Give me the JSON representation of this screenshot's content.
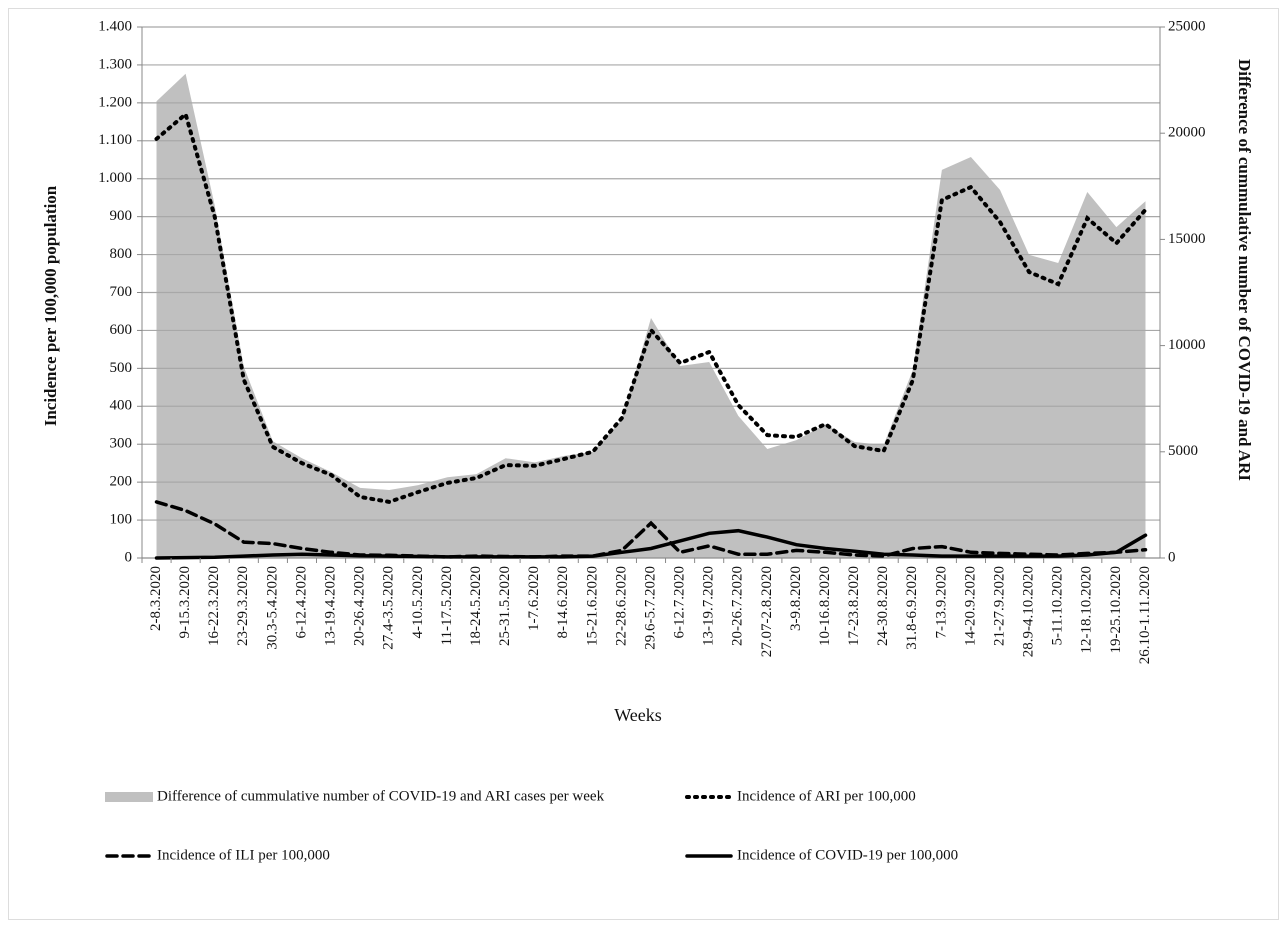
{
  "chart_data": {
    "type": "line",
    "x_label": "Weeks",
    "y_label": "Incidence per 100,000 population",
    "y2_label": "Difference of cummulative number of COVID-19 and ARI",
    "categories": [
      "2-8.3.2020",
      "9-15.3.2020",
      "16-22.3.2020",
      "23-29.3.2020",
      "30.3-5.4.2020",
      "6-12.4.2020",
      "13-19.4.2020",
      "20-26.4.2020",
      "27.4-3.5.2020",
      "4-10.5.2020",
      "11-17.5.2020",
      "18-24.5.2020",
      "25-31.5.2020",
      "1-7.6.2020",
      "8-14.6.2020",
      "15-21.6.2020",
      "22-28.6.2020",
      "29.6-5.7.2020",
      "6-12.7.2020",
      "13-19.7.2020",
      "20-26.7.2020",
      "27.07-2.8.2020",
      "3-9.8.2020",
      "10-16.8.2020",
      "17-23.8.2020",
      "24-30.8.2020",
      "31.8-6.9.2020",
      "7-13.9.2020",
      "14-20.9.2020",
      "21-27.9.2020",
      "28.9-4.10.2020",
      "5-11.10.2020",
      "12-18.10.2020",
      "19-25.10.2020",
      "26.10-1.11.2020"
    ],
    "ylim": [
      0,
      1400
    ],
    "yticks": [
      0,
      100,
      200,
      300,
      400,
      500,
      600,
      700,
      800,
      900,
      {
        "value": 1000,
        "label": "1.000"
      },
      {
        "value": 1100,
        "label": "1.100"
      },
      {
        "value": 1200,
        "label": "1.200"
      },
      {
        "value": 1300,
        "label": "1.300"
      },
      {
        "value": 1400,
        "label": "1.400"
      }
    ],
    "y2lim": [
      0,
      25000
    ],
    "y2ticks": [
      0,
      5000,
      10000,
      15000,
      20000,
      25000
    ],
    "grid": true,
    "series": [
      {
        "name": "Difference of cummulative number of COVID-19 and ARI cases per week",
        "color": "#c0c0c0",
        "style": "area",
        "axis": "y2",
        "values": [
          21500,
          22800,
          16600,
          9000,
          5500,
          4700,
          4050,
          3300,
          3200,
          3430,
          3800,
          3950,
          4700,
          4500,
          4800,
          5000,
          6500,
          11300,
          9040,
          9230,
          6690,
          5130,
          5550,
          6300,
          5460,
          5320,
          8850,
          18270,
          18880,
          17330,
          14270,
          13890,
          17230,
          15580,
          16800
        ]
      },
      {
        "name": "Incidence of ARI per 100,000",
        "color": "#000000",
        "style": "dotted",
        "values": [
          1105,
          1170,
          900,
          470,
          293,
          250,
          219,
          161,
          148,
          174,
          198,
          211,
          245,
          243,
          261,
          280,
          369,
          601,
          514,
          543,
          403,
          324,
          319,
          353,
          295,
          282,
          469,
          944,
          978,
          886,
          754,
          722,
          896,
          830,
          918
        ]
      },
      {
        "name": "Incidence of ILI per 100,000",
        "color": "#000000",
        "style": "dashed",
        "values": [
          148,
          125,
          90,
          42,
          38,
          25,
          15,
          8,
          7,
          5,
          3,
          5,
          4,
          3,
          5,
          5,
          20,
          92,
          15,
          32,
          10,
          10,
          20,
          15,
          8,
          5,
          25,
          30,
          15,
          12,
          10,
          8,
          12,
          15,
          22
        ]
      },
      {
        "name": "Incidence of COVID-19 per 100,000",
        "color": "#000000",
        "style": "solid",
        "values": [
          0,
          1,
          2,
          5,
          8,
          10,
          8,
          6,
          5,
          4,
          3,
          3,
          3,
          3,
          3,
          5,
          15,
          25,
          45,
          65,
          72,
          55,
          35,
          25,
          18,
          10,
          8,
          5,
          5,
          5,
          5,
          5,
          8,
          15,
          60
        ]
      }
    ]
  }
}
